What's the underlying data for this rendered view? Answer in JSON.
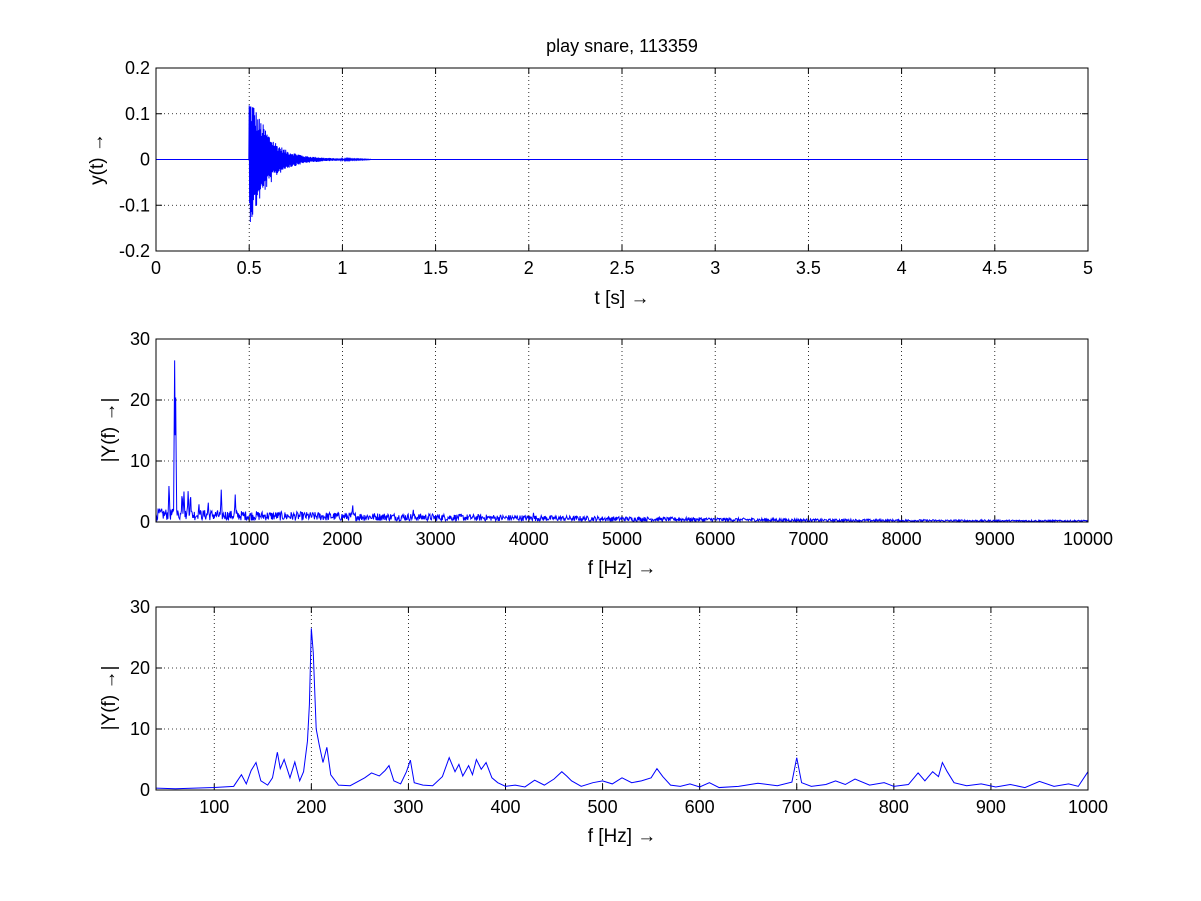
{
  "figure": {
    "background": "#ffffff",
    "line_color": "#0000ff"
  },
  "chart_data": [
    {
      "type": "line",
      "title": "play snare, 113359",
      "xlabel": "t [s] →",
      "ylabel": "y(t)  →",
      "xlim": [
        0,
        5
      ],
      "ylim": [
        -0.2,
        0.2
      ],
      "x_ticks": [
        "0",
        "0.5",
        "1",
        "1.5",
        "2",
        "2.5",
        "3",
        "3.5",
        "4",
        "4.5",
        "5"
      ],
      "y_ticks": [
        "-0.2",
        "-0.1",
        "0",
        "0.1",
        "0.2"
      ],
      "grid": true,
      "series": [
        {
          "description": "snare hit waveform: onset at 0.5 s, peak amplitude about ±0.14, decaying to near zero by about 1.15 s, silent afterwards",
          "onset": 0.5,
          "peak_amplitude": 0.14,
          "decay_end": 1.15,
          "x": [
            0,
            0.5,
            0.51,
            0.52,
            0.55,
            0.6,
            0.65,
            0.7,
            0.8,
            0.9,
            1.0,
            1.15,
            5
          ],
          "envelope": [
            0,
            0.14,
            0.135,
            0.13,
            0.095,
            0.06,
            0.035,
            0.02,
            0.008,
            0.004,
            0.002,
            0.0005,
            0
          ]
        }
      ]
    },
    {
      "type": "line",
      "title": "",
      "xlabel": "f [Hz] →",
      "ylabel": "|Y(f) →|",
      "xlim": [
        0,
        10000
      ],
      "ylim": [
        0,
        30
      ],
      "x_ticks": [
        "1000",
        "2000",
        "3000",
        "4000",
        "5000",
        "6000",
        "7000",
        "8000",
        "9000",
        "10000"
      ],
      "y_ticks": [
        "0",
        "10",
        "20",
        "30"
      ],
      "grid": true,
      "series": [
        {
          "description": "magnitude spectrum 0–10000 Hz with dominant peak of about 26.5 at 200 Hz and a noise floor decaying from about 1.5 to 0.3",
          "peaks": [
            {
              "x": 140,
              "y": 6.5
            },
            {
              "x": 200,
              "y": 26.5
            },
            {
              "x": 210,
              "y": 22.5
            },
            {
              "x": 280,
              "y": 5.2
            },
            {
              "x": 300,
              "y": 5.0
            },
            {
              "x": 345,
              "y": 5.3
            },
            {
              "x": 370,
              "y": 5.0
            },
            {
              "x": 460,
              "y": 3.2
            },
            {
              "x": 560,
              "y": 3.5
            },
            {
              "x": 700,
              "y": 5.3
            },
            {
              "x": 850,
              "y": 4.5
            },
            {
              "x": 2110,
              "y": 3.0
            },
            {
              "x": 2760,
              "y": 2.2
            },
            {
              "x": 4050,
              "y": 1.5
            }
          ],
          "floor_x": [
            0,
            1000,
            3000,
            5000,
            7000,
            8500,
            10000
          ],
          "floor_y": [
            1.5,
            1.2,
            0.9,
            0.6,
            0.35,
            0.25,
            0.2
          ]
        }
      ]
    },
    {
      "type": "line",
      "title": "",
      "xlabel": "f [Hz] →",
      "ylabel": "|Y(f) →|",
      "xlim": [
        40,
        1000
      ],
      "ylim": [
        0,
        30
      ],
      "x_ticks": [
        "100",
        "200",
        "300",
        "400",
        "500",
        "600",
        "700",
        "800",
        "900",
        "1000"
      ],
      "y_ticks": [
        "0",
        "10",
        "20",
        "30"
      ],
      "grid": true,
      "series": [
        {
          "description": "zoomed magnitude spectrum 40–1000 Hz",
          "x": [
            40,
            60,
            80,
            100,
            120,
            128,
            133,
            138,
            143,
            148,
            155,
            160,
            165,
            168,
            172,
            178,
            183,
            188,
            192,
            196,
            198,
            200,
            202,
            205,
            208,
            212,
            216,
            220,
            228,
            240,
            255,
            262,
            270,
            276,
            280,
            285,
            292,
            298,
            302,
            306,
            315,
            325,
            335,
            342,
            348,
            352,
            356,
            362,
            366,
            370,
            375,
            380,
            386,
            392,
            400,
            410,
            420,
            430,
            440,
            450,
            458,
            463,
            468,
            478,
            490,
            500,
            510,
            520,
            530,
            540,
            550,
            556,
            562,
            570,
            580,
            590,
            600,
            610,
            620,
            640,
            660,
            680,
            695,
            700,
            705,
            715,
            730,
            740,
            750,
            760,
            775,
            790,
            800,
            815,
            825,
            832,
            840,
            846,
            850,
            855,
            862,
            875,
            890,
            905,
            920,
            935,
            950,
            965,
            980,
            990,
            1000
          ],
          "y": [
            0.3,
            0.2,
            0.3,
            0.4,
            0.6,
            2.5,
            1.0,
            3.2,
            4.5,
            1.5,
            0.8,
            2.0,
            6.2,
            3.5,
            5.0,
            2.0,
            4.6,
            1.5,
            3.0,
            8.0,
            14.0,
            26.5,
            22.5,
            10.0,
            7.5,
            4.5,
            7.0,
            2.5,
            0.8,
            0.7,
            2.0,
            2.8,
            2.3,
            3.2,
            4.0,
            1.5,
            1.0,
            3.0,
            4.9,
            1.2,
            0.8,
            0.7,
            2.2,
            5.3,
            3.0,
            4.2,
            2.3,
            4.0,
            2.5,
            5.0,
            3.4,
            4.5,
            2.0,
            1.2,
            0.6,
            0.8,
            0.5,
            1.6,
            0.8,
            1.8,
            3.0,
            2.3,
            1.5,
            0.6,
            1.2,
            1.5,
            1.0,
            2.0,
            1.2,
            1.5,
            2.0,
            3.5,
            2.2,
            0.8,
            0.6,
            1.0,
            0.5,
            1.2,
            0.4,
            0.6,
            1.1,
            0.7,
            1.3,
            5.3,
            1.2,
            0.6,
            0.9,
            1.5,
            0.9,
            1.8,
            0.8,
            1.2,
            0.6,
            0.9,
            2.8,
            1.5,
            3.0,
            2.2,
            4.5,
            3.0,
            1.2,
            0.7,
            1.0,
            0.5,
            0.9,
            0.4,
            1.4,
            0.6,
            1.0,
            0.6,
            3.0
          ]
        }
      ]
    }
  ]
}
